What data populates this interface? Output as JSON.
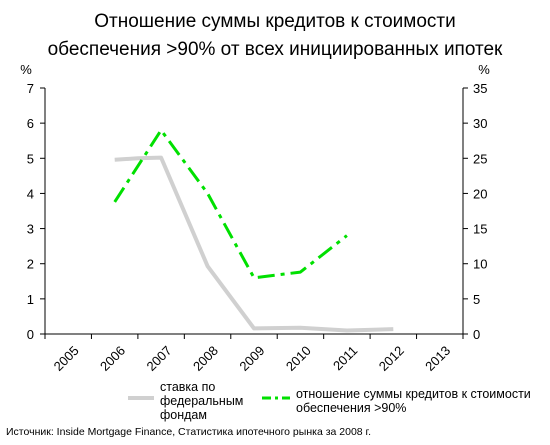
{
  "chart_data": {
    "type": "line",
    "title": [
      "Отношение суммы кредитов к стоимости",
      "обеспечения >90% от всех инициированных ипотек"
    ],
    "y_left_unit": "%",
    "y_right_unit": "%",
    "categories": [
      "2005",
      "2006",
      "2007",
      "2008",
      "2009",
      "2010",
      "2011",
      "2012",
      "2013"
    ],
    "y_left": {
      "min": 0,
      "max": 7,
      "ticks": [
        "0",
        "1",
        "2",
        "3",
        "4",
        "5",
        "6",
        "7"
      ]
    },
    "y_right": {
      "min": 0,
      "max": 35,
      "ticks": [
        "0",
        "5",
        "10",
        "15",
        "20",
        "25",
        "30",
        "35"
      ]
    },
    "grid": false,
    "series": [
      {
        "name": "ставка по федеральным фондам",
        "legend_lines": [
          "ставка по",
          "федеральным",
          "фондам"
        ],
        "axis": "left",
        "style": "solid",
        "color": "#d0d0d0",
        "points": [
          {
            "x": 2006,
            "y": 4.96
          },
          {
            "x": 2006.5,
            "y": 5.0
          },
          {
            "x": 2007,
            "y": 5.02
          },
          {
            "x": 2008,
            "y": 1.93
          },
          {
            "x": 2009,
            "y": 0.16
          },
          {
            "x": 2010,
            "y": 0.18
          },
          {
            "x": 2011,
            "y": 0.1
          },
          {
            "x": 2012,
            "y": 0.14
          }
        ]
      },
      {
        "name": "отношение суммы кредитов к стоимости обеспечения >90%",
        "legend_lines": [
          "отношение суммы кредитов к стоимости",
          "обеспечения >90%"
        ],
        "axis": "right",
        "style": "dashdot",
        "color": "#00e000",
        "points": [
          {
            "x": 2006,
            "y": 18.8
          },
          {
            "x": 2007,
            "y": 29.0
          },
          {
            "x": 2008,
            "y": 20.0
          },
          {
            "x": 2009,
            "y": 8.0
          },
          {
            "x": 2010,
            "y": 8.8
          },
          {
            "x": 2011,
            "y": 14.0
          }
        ]
      }
    ]
  },
  "source": "Источник: Inside Mortgage Finance, Статистика ипотечного рынка за 2008 г."
}
